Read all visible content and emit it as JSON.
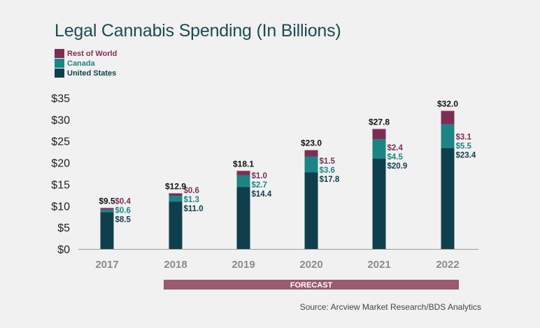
{
  "chart_data": {
    "type": "bar",
    "stacked": true,
    "title": "Legal Cannabis Spending (In Billions)",
    "categories": [
      "2017",
      "2018",
      "2019",
      "2020",
      "2021",
      "2022"
    ],
    "series": [
      {
        "name": "United States",
        "color": "#0f3f4c",
        "values": [
          8.5,
          11.0,
          14.4,
          17.8,
          20.9,
          23.4
        ],
        "labels": [
          "$8.5",
          "$11.0",
          "$14.4",
          "$17.8",
          "$20.9",
          "$23.4"
        ]
      },
      {
        "name": "Canada",
        "color": "#1b8585",
        "values": [
          0.6,
          1.3,
          2.7,
          3.6,
          4.5,
          5.5
        ],
        "labels": [
          "$0.6",
          "$1.3",
          "$2.7",
          "$3.6",
          "$4.5",
          "$5.5"
        ]
      },
      {
        "name": "Rest of World",
        "color": "#7d2e55",
        "values": [
          0.4,
          0.6,
          1.0,
          1.5,
          2.4,
          3.1
        ],
        "labels": [
          "$0.4",
          "$0.6",
          "$1.0",
          "$1.5",
          "$2.4",
          "$3.1"
        ]
      }
    ],
    "totals": [
      "$9.5",
      "$12.9",
      "$18.1",
      "$23.0",
      "$27.8",
      "$32.0"
    ],
    "y_ticks": [
      0,
      5,
      10,
      15,
      20,
      25,
      30,
      35
    ],
    "y_tick_labels": [
      "$0",
      "$5",
      "$10",
      "$15",
      "$20",
      "$25",
      "$30",
      "$35"
    ],
    "ylim": [
      0,
      35
    ],
    "legend_position": "top-left",
    "forecast_label": "FORECAST",
    "forecast_color": "#9a5a72",
    "source": "Source: Arcview Market Research/BDS Analytics"
  }
}
